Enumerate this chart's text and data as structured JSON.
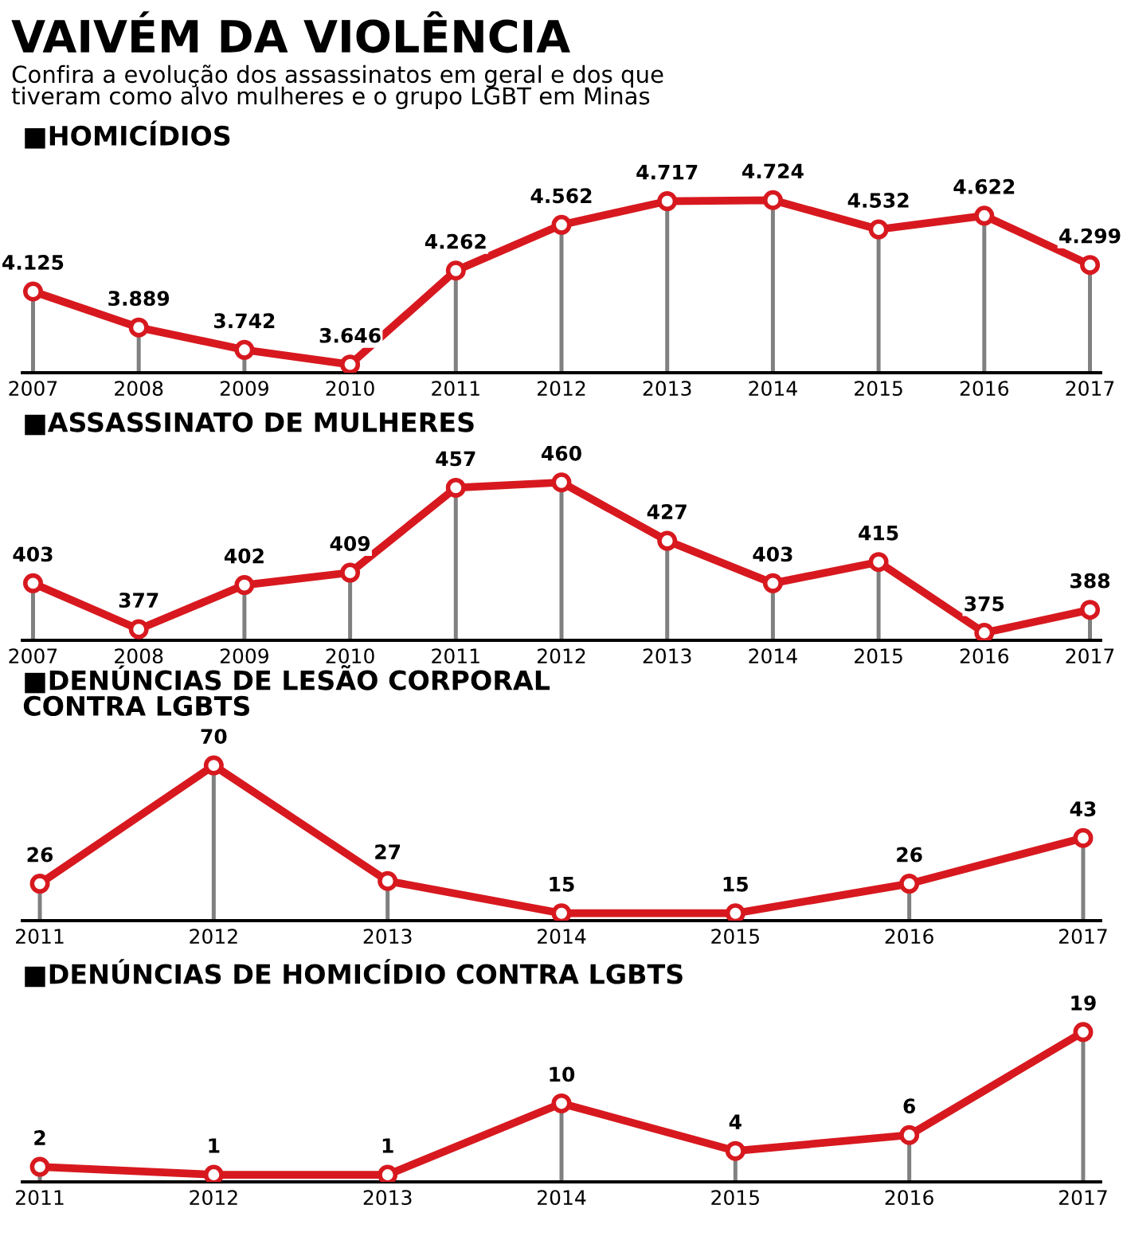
{
  "chart_data": [
    {
      "type": "other",
      "title": "VAIVÉM DA VIOLÊNCIA",
      "subtitle": "Confira a evolução dos assassinatos em geral e dos que\ntiveram como alvo mulheres e o grupo LGBT em Minas"
    },
    {
      "type": "line",
      "title": "■HOMICÍDIOS",
      "categories": [
        "2007",
        "2008",
        "2009",
        "2010",
        "2011",
        "2012",
        "2013",
        "2014",
        "2015",
        "2016",
        "2017"
      ],
      "series": [
        {
          "color": "#d7191f",
          "values": [
            4125,
            3889,
            3742,
            3646,
            4262,
            4562,
            4717,
            4724,
            4532,
            4622,
            4299
          ],
          "value_labels": [
            "4.125",
            "3.889",
            "3.742",
            "3.646",
            "4.262",
            "4.562",
            "4.717",
            "4.724",
            "4.532",
            "4.622",
            "4.299"
          ]
        }
      ],
      "marker": "circle",
      "line_style": "solid",
      "grid": "x",
      "legend": false,
      "tick_labels": "x"
    },
    {
      "type": "line",
      "title": "■ASSASSINATO DE MULHERES",
      "categories": [
        "2007",
        "2008",
        "2009",
        "2010",
        "2011",
        "2012",
        "2013",
        "2014",
        "2015",
        "2016",
        "2017"
      ],
      "series": [
        {
          "color": "#d7191f",
          "values": [
            403,
            377,
            402,
            409,
            457,
            460,
            427,
            403,
            415,
            375,
            388
          ]
        }
      ],
      "data_labels": true,
      "marker": "circle",
      "line_style": "solid",
      "grid": "x",
      "legend": false,
      "tick_labels": "x"
    },
    {
      "type": "line",
      "title": "■DENÚNCIAS DE LESÃO CORPORAL\nCONTRA LGBTS",
      "categories": [
        "2011",
        "2012",
        "2013",
        "2014",
        "2015",
        "2016",
        "2017"
      ],
      "series": [
        {
          "color": "#d7191f",
          "values": [
            26,
            70,
            27,
            15,
            15,
            26,
            43
          ]
        }
      ],
      "data_labels": true,
      "marker": "circle",
      "line_style": "solid",
      "grid": "x",
      "legend": false,
      "tick_labels": "x"
    },
    {
      "type": "line",
      "title": "■DENÚNCIAS DE HOMICÍDIO CONTRA LGBTS",
      "categories": [
        "2011",
        "2012",
        "2013",
        "2014",
        "2015",
        "2016",
        "2017"
      ],
      "series": [
        {
          "color": "#d7191f",
          "values": [
            2,
            1,
            1,
            10,
            4,
            6,
            19
          ]
        }
      ],
      "data_labels": true,
      "marker": "circle",
      "line_style": "solid",
      "grid": "x",
      "legend": false,
      "tick_labels": "x"
    }
  ]
}
